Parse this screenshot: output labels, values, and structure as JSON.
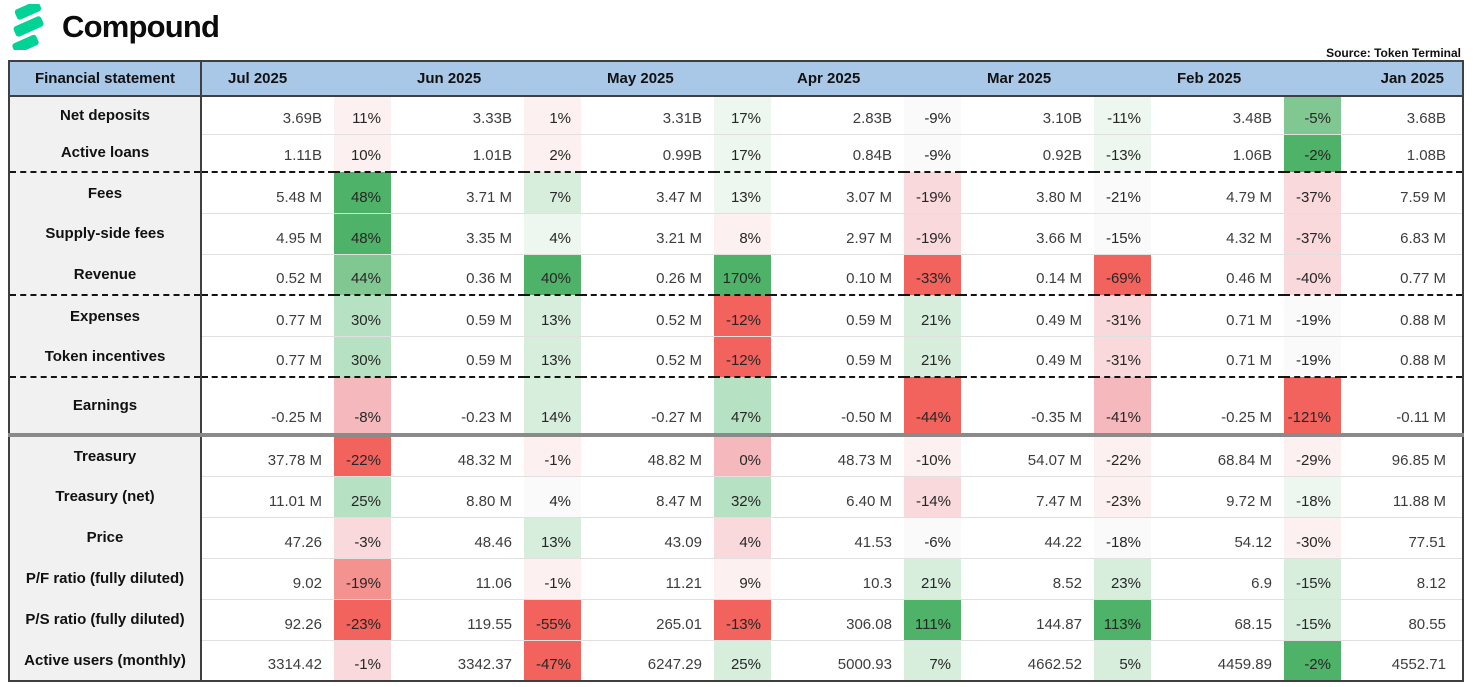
{
  "brand": {
    "name": "Compound",
    "logo_color": "#00D395"
  },
  "source_note": "Source: Token Terminal",
  "table": {
    "header": {
      "label_col": "Financial statement",
      "months": [
        "Jul 2025",
        "Jun 2025",
        "May 2025",
        "Apr 2025",
        "Mar 2025",
        "Feb 2025"
      ],
      "last_month": "Jan 2025"
    },
    "palette": {
      "g5": "#4fb269",
      "g4": "#80c791",
      "g3": "#b7e1c3",
      "g2": "#d8eedd",
      "g1": "#edf6ef",
      "n": "#fafafa",
      "r1": "#fdf0f1",
      "r2": "#f9d9dc",
      "r3": "#f5b9bd",
      "r4": "#f4928f",
      "r5": "#f2635d"
    },
    "rows": [
      {
        "label": "Net deposits",
        "sep": "thin",
        "tall": false,
        "cells": [
          {
            "v": "3.69B",
            "p": "11%",
            "c": "r1"
          },
          {
            "v": "3.33B",
            "p": "1%",
            "c": "r1"
          },
          {
            "v": "3.31B",
            "p": "17%",
            "c": "g1"
          },
          {
            "v": "2.83B",
            "p": "-9%",
            "c": "n"
          },
          {
            "v": "3.10B",
            "p": "-11%",
            "c": "g1"
          },
          {
            "v": "3.48B",
            "p": "-5%",
            "c": "g4"
          }
        ],
        "jan": "3.68B"
      },
      {
        "label": "Active loans",
        "sep": "dashed",
        "tall": false,
        "cells": [
          {
            "v": "1.11B",
            "p": "10%",
            "c": "r1"
          },
          {
            "v": "1.01B",
            "p": "2%",
            "c": "r1"
          },
          {
            "v": "0.99B",
            "p": "17%",
            "c": "g1"
          },
          {
            "v": "0.84B",
            "p": "-9%",
            "c": "n"
          },
          {
            "v": "0.92B",
            "p": "-13%",
            "c": "g1"
          },
          {
            "v": "1.06B",
            "p": "-2%",
            "c": "g5"
          }
        ],
        "jan": "1.08B"
      },
      {
        "label": "Fees",
        "sep": "thin",
        "tall": false,
        "cells": [
          {
            "v": "5.48 M",
            "p": "48%",
            "c": "g5"
          },
          {
            "v": "3.71 M",
            "p": "7%",
            "c": "g2"
          },
          {
            "v": "3.47 M",
            "p": "13%",
            "c": "g1"
          },
          {
            "v": "3.07 M",
            "p": "-19%",
            "c": "r2"
          },
          {
            "v": "3.80 M",
            "p": "-21%",
            "c": "n"
          },
          {
            "v": "4.79 M",
            "p": "-37%",
            "c": "r2"
          }
        ],
        "jan": "7.59 M"
      },
      {
        "label": "Supply-side fees",
        "sep": "thin",
        "tall": false,
        "cells": [
          {
            "v": "4.95 M",
            "p": "48%",
            "c": "g5"
          },
          {
            "v": "3.35 M",
            "p": "4%",
            "c": "g1"
          },
          {
            "v": "3.21 M",
            "p": "8%",
            "c": "r1"
          },
          {
            "v": "2.97 M",
            "p": "-19%",
            "c": "r2"
          },
          {
            "v": "3.66 M",
            "p": "-15%",
            "c": "n"
          },
          {
            "v": "4.32 M",
            "p": "-37%",
            "c": "r2"
          }
        ],
        "jan": "6.83 M"
      },
      {
        "label": "Revenue",
        "sep": "dashed",
        "tall": false,
        "cells": [
          {
            "v": "0.52 M",
            "p": "44%",
            "c": "g4"
          },
          {
            "v": "0.36 M",
            "p": "40%",
            "c": "g5"
          },
          {
            "v": "0.26 M",
            "p": "170%",
            "c": "g5"
          },
          {
            "v": "0.10 M",
            "p": "-33%",
            "c": "r5"
          },
          {
            "v": "0.14 M",
            "p": "-69%",
            "c": "r5"
          },
          {
            "v": "0.46 M",
            "p": "-40%",
            "c": "r2"
          }
        ],
        "jan": "0.77 M"
      },
      {
        "label": "Expenses",
        "sep": "thin",
        "tall": false,
        "cells": [
          {
            "v": "0.77 M",
            "p": "30%",
            "c": "g3"
          },
          {
            "v": "0.59 M",
            "p": "13%",
            "c": "g2"
          },
          {
            "v": "0.52 M",
            "p": "-12%",
            "c": "r5"
          },
          {
            "v": "0.59 M",
            "p": "21%",
            "c": "g2"
          },
          {
            "v": "0.49 M",
            "p": "-31%",
            "c": "r2"
          },
          {
            "v": "0.71 M",
            "p": "-19%",
            "c": "n"
          }
        ],
        "jan": "0.88 M"
      },
      {
        "label": "Token incentives",
        "sep": "dashed",
        "tall": false,
        "cells": [
          {
            "v": "0.77 M",
            "p": "30%",
            "c": "g3"
          },
          {
            "v": "0.59 M",
            "p": "13%",
            "c": "g2"
          },
          {
            "v": "0.52 M",
            "p": "-12%",
            "c": "r5"
          },
          {
            "v": "0.59 M",
            "p": "21%",
            "c": "g2"
          },
          {
            "v": "0.49 M",
            "p": "-31%",
            "c": "r2"
          },
          {
            "v": "0.71 M",
            "p": "-19%",
            "c": "n"
          }
        ],
        "jan": "0.88 M"
      },
      {
        "label": "Earnings",
        "sep": "thick",
        "tall": true,
        "cells": [
          {
            "v": "-0.25 M",
            "p": "-8%",
            "c": "r3"
          },
          {
            "v": "-0.23 M",
            "p": "14%",
            "c": "g2"
          },
          {
            "v": "-0.27 M",
            "p": "47%",
            "c": "g3"
          },
          {
            "v": "-0.50 M",
            "p": "-44%",
            "c": "r5"
          },
          {
            "v": "-0.35 M",
            "p": "-41%",
            "c": "r3"
          },
          {
            "v": "-0.25 M",
            "p": "-121%",
            "c": "r5"
          }
        ],
        "jan": "-0.11 M"
      },
      {
        "label": "Treasury",
        "sep": "thin",
        "tall": false,
        "cells": [
          {
            "v": "37.78 M",
            "p": "-22%",
            "c": "r5"
          },
          {
            "v": "48.32 M",
            "p": "-1%",
            "c": "r1"
          },
          {
            "v": "48.82 M",
            "p": "0%",
            "c": "r3"
          },
          {
            "v": "48.73 M",
            "p": "-10%",
            "c": "r1"
          },
          {
            "v": "54.07 M",
            "p": "-22%",
            "c": "r1"
          },
          {
            "v": "68.84 M",
            "p": "-29%",
            "c": "r1"
          }
        ],
        "jan": "96.85 M"
      },
      {
        "label": "Treasury (net)",
        "sep": "thin",
        "tall": false,
        "cells": [
          {
            "v": "11.01 M",
            "p": "25%",
            "c": "g3"
          },
          {
            "v": "8.80 M",
            "p": "4%",
            "c": "n"
          },
          {
            "v": "8.47 M",
            "p": "32%",
            "c": "g3"
          },
          {
            "v": "6.40 M",
            "p": "-14%",
            "c": "r2"
          },
          {
            "v": "7.47 M",
            "p": "-23%",
            "c": "r1"
          },
          {
            "v": "9.72 M",
            "p": "-18%",
            "c": "g1"
          }
        ],
        "jan": "11.88 M"
      },
      {
        "label": "Price",
        "sep": "thin",
        "tall": false,
        "cells": [
          {
            "v": "47.26",
            "p": "-3%",
            "c": "r2"
          },
          {
            "v": "48.46",
            "p": "13%",
            "c": "g2"
          },
          {
            "v": "43.09",
            "p": "4%",
            "c": "r2"
          },
          {
            "v": "41.53",
            "p": "-6%",
            "c": "n"
          },
          {
            "v": "44.22",
            "p": "-18%",
            "c": "n"
          },
          {
            "v": "54.12",
            "p": "-30%",
            "c": "r1"
          }
        ],
        "jan": "77.51"
      },
      {
        "label": "P/F ratio (fully diluted)",
        "sep": "thin",
        "tall": false,
        "cells": [
          {
            "v": "9.02",
            "p": "-19%",
            "c": "r4"
          },
          {
            "v": "11.06",
            "p": "-1%",
            "c": "r1"
          },
          {
            "v": "11.21",
            "p": "9%",
            "c": "r1"
          },
          {
            "v": "10.3",
            "p": "21%",
            "c": "g2"
          },
          {
            "v": "8.52",
            "p": "23%",
            "c": "g2"
          },
          {
            "v": "6.9",
            "p": "-15%",
            "c": "g2"
          }
        ],
        "jan": "8.12"
      },
      {
        "label": "P/S ratio (fully diluted)",
        "sep": "thin",
        "tall": false,
        "cells": [
          {
            "v": "92.26",
            "p": "-23%",
            "c": "r5"
          },
          {
            "v": "119.55",
            "p": "-55%",
            "c": "r5"
          },
          {
            "v": "265.01",
            "p": "-13%",
            "c": "r5"
          },
          {
            "v": "306.08",
            "p": "111%",
            "c": "g5"
          },
          {
            "v": "144.87",
            "p": "113%",
            "c": "g5"
          },
          {
            "v": "68.15",
            "p": "-15%",
            "c": "g2"
          }
        ],
        "jan": "80.55"
      },
      {
        "label": "Active users (monthly)",
        "sep": "none",
        "tall": false,
        "cells": [
          {
            "v": "3314.42",
            "p": "-1%",
            "c": "r2"
          },
          {
            "v": "3342.37",
            "p": "-47%",
            "c": "r5"
          },
          {
            "v": "6247.29",
            "p": "25%",
            "c": "g2"
          },
          {
            "v": "5000.93",
            "p": "7%",
            "c": "g2"
          },
          {
            "v": "4662.52",
            "p": "5%",
            "c": "g2"
          },
          {
            "v": "4459.89",
            "p": "-2%",
            "c": "g5"
          }
        ],
        "jan": "4552.71"
      }
    ]
  }
}
